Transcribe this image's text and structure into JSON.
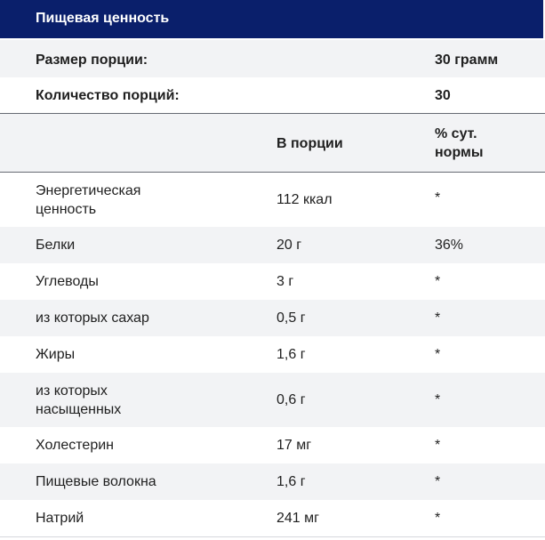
{
  "title": "Пищевая ценность",
  "summary": [
    {
      "label": "Размер порции:",
      "value": "30 грамм"
    },
    {
      "label": "Количество порций:",
      "value": "30"
    }
  ],
  "columns": {
    "per_serving": "В порции",
    "daily": "% сут.\nнормы"
  },
  "rows": [
    {
      "name": "Энергетическая\nценность",
      "per_serving": "112 ккал",
      "daily": "*"
    },
    {
      "name": "Белки",
      "per_serving": "20 г",
      "daily": "36%"
    },
    {
      "name": "Углеводы",
      "per_serving": "3 г",
      "daily": "*"
    },
    {
      "name": "из которых сахар",
      "per_serving": "0,5 г",
      "daily": "*"
    },
    {
      "name": "Жиры",
      "per_serving": "1,6 г",
      "daily": "*"
    },
    {
      "name": "из которых\nнасыщенных",
      "per_serving": "0,6 г",
      "daily": "*"
    },
    {
      "name": "Холестерин",
      "per_serving": "17 мг",
      "daily": "*"
    },
    {
      "name": "Пищевые волокна",
      "per_serving": "1,6 г",
      "daily": "*"
    },
    {
      "name": "Натрий",
      "per_serving": "241 мг",
      "daily": "*"
    }
  ],
  "colors": {
    "header_bg": "#0a1f6b",
    "stripe_bg": "#f2f3f5"
  }
}
